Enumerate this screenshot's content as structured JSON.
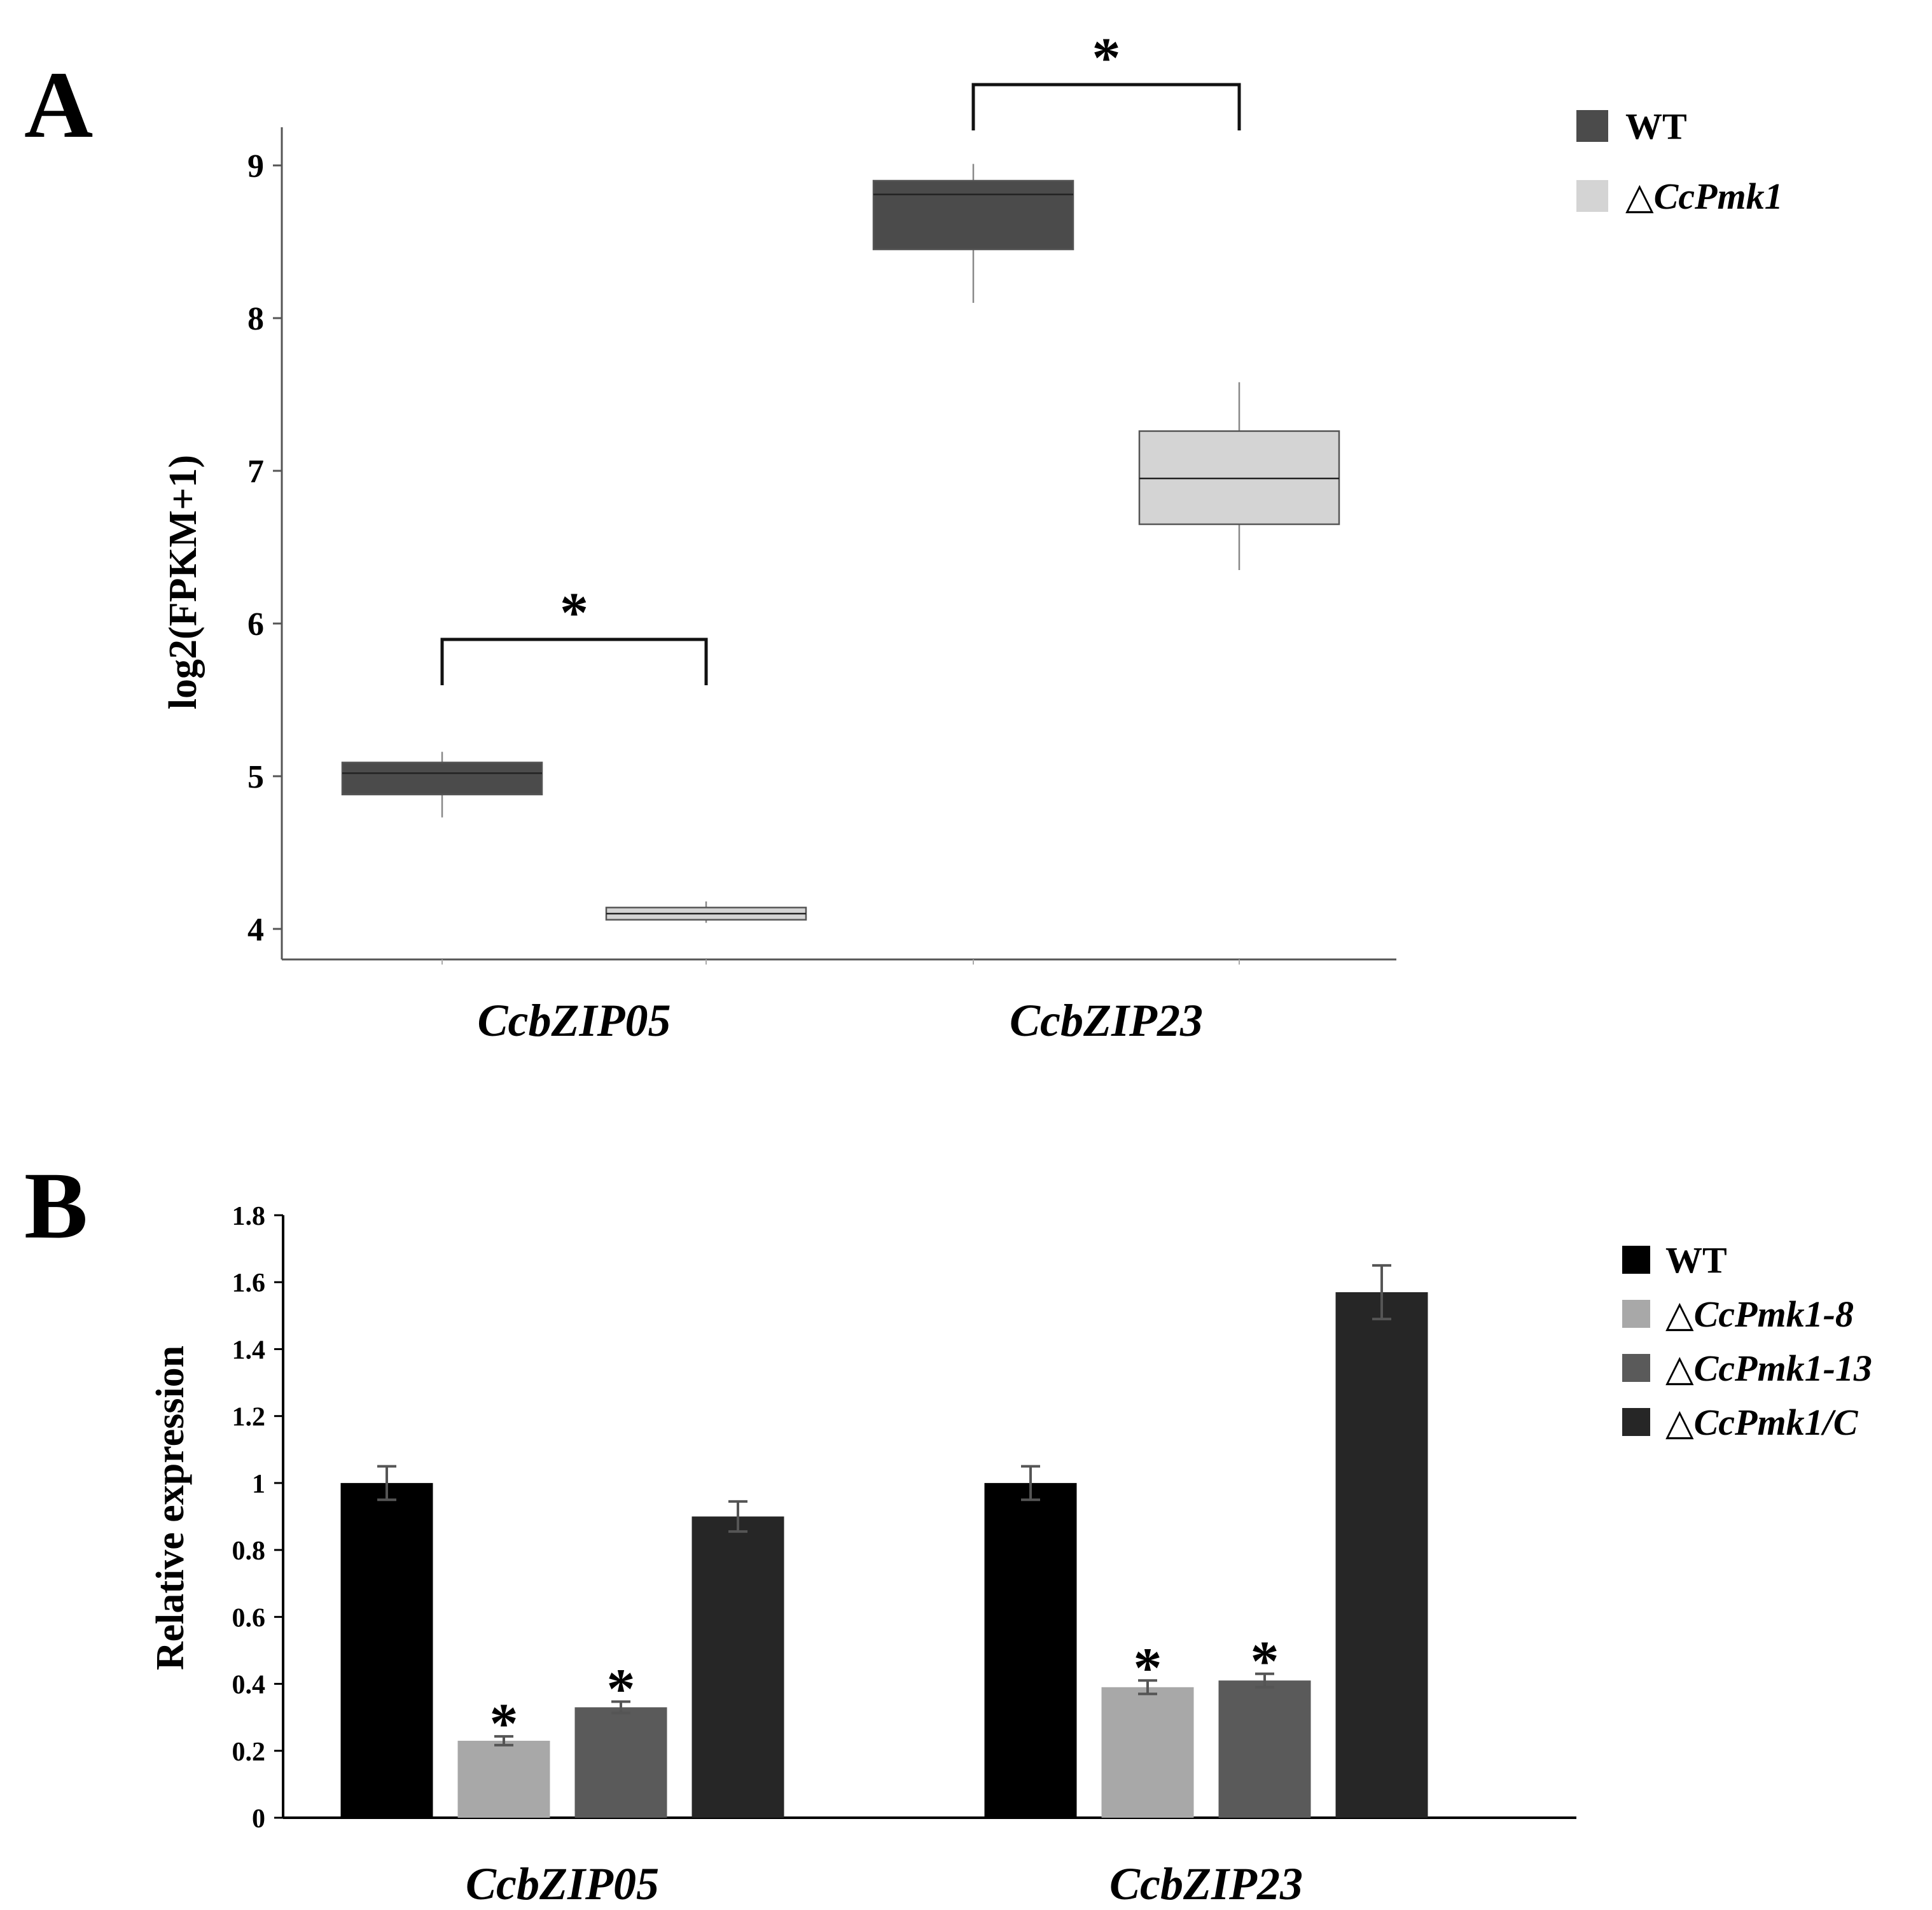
{
  "chart_data": [
    {
      "panel": "A",
      "type": "box",
      "ylabel": "log2(FPKM+1)",
      "ylim": [
        3.8,
        9.25
      ],
      "yticks": [
        "4",
        "5",
        "6",
        "7",
        "8",
        "9"
      ],
      "categories": [
        "CcbZIP05",
        "CcbZIP23"
      ],
      "legend": [
        {
          "label": "WT",
          "italic": false,
          "color": "#4b4b4b"
        },
        {
          "label": "△CcPmk1",
          "italic": true,
          "color": "#d4d4d4"
        }
      ],
      "boxes": [
        {
          "category": "CcbZIP05",
          "series": "WT",
          "min": 4.73,
          "q1": 4.88,
          "median": 5.02,
          "q3": 5.09,
          "max": 5.16
        },
        {
          "category": "CcbZIP05",
          "series": "△CcPmk1",
          "min": 4.04,
          "q1": 4.06,
          "median": 4.1,
          "q3": 4.14,
          "max": 4.18
        },
        {
          "category": "CcbZIP23",
          "series": "WT",
          "min": 8.1,
          "q1": 8.45,
          "median": 8.81,
          "q3": 8.9,
          "max": 9.01
        },
        {
          "category": "CcbZIP23",
          "series": "△CcPmk1",
          "min": 6.35,
          "q1": 6.65,
          "median": 6.95,
          "q3": 7.26,
          "max": 7.58
        }
      ],
      "significance": [
        {
          "category": "CcbZIP05",
          "label": "*"
        },
        {
          "category": "CcbZIP23",
          "label": "*"
        }
      ]
    },
    {
      "panel": "B",
      "type": "bar",
      "ylabel": "Relative expression",
      "ylim": [
        0,
        1.8
      ],
      "yticks": [
        "0",
        "0.2",
        "0.4",
        "0.6",
        "0.8",
        "1",
        "1.2",
        "1.4",
        "1.6",
        "1.8"
      ],
      "categories": [
        "CcbZIP05",
        "CcbZIP23"
      ],
      "series": [
        {
          "name": "WT",
          "italic": false,
          "color": "#000000",
          "values": [
            1.0,
            1.0
          ],
          "errors": [
            0.05,
            0.05
          ],
          "significant": [
            false,
            false
          ]
        },
        {
          "name": "△CcPmk1-8",
          "italic": true,
          "color": "#a8a8a8",
          "values": [
            0.23,
            0.39
          ],
          "errors": [
            0.013,
            0.02
          ],
          "significant": [
            true,
            true
          ]
        },
        {
          "name": "△CcPmk1-13",
          "italic": true,
          "color": "#5a5a5a",
          "values": [
            0.33,
            0.41
          ],
          "errors": [
            0.017,
            0.02
          ],
          "significant": [
            true,
            true
          ]
        },
        {
          "name": "△CcPmk1/C",
          "italic": true,
          "color": "#262626",
          "values": [
            0.9,
            1.57
          ],
          "errors": [
            0.045,
            0.08
          ],
          "significant": [
            false,
            false
          ]
        }
      ]
    }
  ]
}
